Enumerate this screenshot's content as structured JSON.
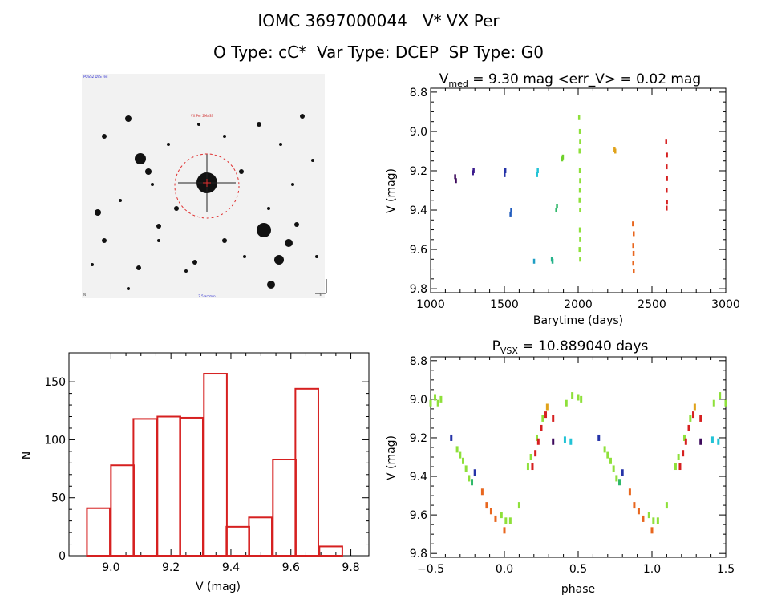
{
  "header": {
    "line1_id": "IOMC 3697000044",
    "line1_name": "V* VX Per",
    "line2_otype": "O Type: cC*",
    "line2_vartype": "Var Type: DCEP",
    "line2_sptype": "SP Type: G0"
  },
  "colors": {
    "histogram": "#d62020",
    "image_bg": "#f2f2f2",
    "aperture": "#e03030"
  },
  "chart_data": [
    {
      "type": "scatter",
      "panel": "light-curve",
      "title_main": "V",
      "title_sub": "med",
      "title_rest": " = 9.30 mag <err_V> = 0.02 mag",
      "xlabel": "Barytime (days)",
      "ylabel": "V (mag)",
      "xlim": [
        1000,
        3000
      ],
      "ylim": [
        9.82,
        8.78
      ],
      "xticks": [
        "1000",
        "1500",
        "2000",
        "2500",
        "3000"
      ],
      "yticks": [
        "8.8",
        "9.0",
        "9.2",
        "9.4",
        "9.6",
        "9.8"
      ],
      "series": [
        {
          "color": "#3d0a5c",
          "points": [
            [
              1165,
              9.23
            ],
            [
              1170,
              9.25
            ]
          ]
        },
        {
          "color": "#3a1a8c",
          "points": [
            [
              1285,
              9.21
            ],
            [
              1290,
              9.2
            ]
          ]
        },
        {
          "color": "#2533a8",
          "points": [
            [
              1500,
              9.22
            ],
            [
              1505,
              9.2
            ]
          ]
        },
        {
          "color": "#1f5bbd",
          "points": [
            [
              1540,
              9.42
            ],
            [
              1545,
              9.4
            ]
          ]
        },
        {
          "color": "#1e9ec4",
          "points": [
            [
              1700,
              9.66
            ]
          ]
        },
        {
          "color": "#22c3d6",
          "points": [
            [
              1720,
              9.22
            ],
            [
              1725,
              9.2
            ]
          ]
        },
        {
          "color": "#25b28a",
          "points": [
            [
              1820,
              9.65
            ],
            [
              1825,
              9.66
            ]
          ]
        },
        {
          "color": "#2fb86a",
          "points": [
            [
              1850,
              9.4
            ],
            [
              1855,
              9.38
            ]
          ]
        },
        {
          "color": "#6ed12a",
          "points": [
            [
              1890,
              9.14
            ],
            [
              1895,
              9.13
            ]
          ]
        },
        {
          "color": "#8ee03a",
          "points": [
            [
              2005,
              8.93
            ],
            [
              2010,
              9.0
            ],
            [
              2012,
              9.05
            ],
            [
              2008,
              9.1
            ],
            [
              2010,
              9.2
            ],
            [
              2012,
              9.25
            ],
            [
              2010,
              9.3
            ],
            [
              2008,
              9.35
            ],
            [
              2012,
              9.4
            ],
            [
              2010,
              9.5
            ],
            [
              2012,
              9.55
            ],
            [
              2008,
              9.6
            ],
            [
              2012,
              9.65
            ]
          ]
        },
        {
          "color": "#e0a21a",
          "points": [
            [
              2245,
              9.09
            ],
            [
              2250,
              9.1
            ]
          ]
        },
        {
          "color": "#e8661e",
          "points": [
            [
              2370,
              9.47
            ],
            [
              2375,
              9.52
            ],
            [
              2372,
              9.58
            ],
            [
              2374,
              9.62
            ],
            [
              2372,
              9.67
            ],
            [
              2375,
              9.71
            ]
          ]
        },
        {
          "color": "#d62020",
          "points": [
            [
              2595,
              9.05
            ],
            [
              2600,
              9.12
            ],
            [
              2598,
              9.18
            ],
            [
              2600,
              9.24
            ],
            [
              2598,
              9.3
            ],
            [
              2600,
              9.36
            ],
            [
              2598,
              9.39
            ]
          ]
        }
      ]
    },
    {
      "type": "bar",
      "panel": "histogram",
      "xlabel": "V (mag)",
      "ylabel": "N",
      "xlim": [
        8.86,
        9.86
      ],
      "ylim": [
        0,
        175
      ],
      "xticks": [
        "9.0",
        "9.2",
        "9.4",
        "9.6",
        "9.8"
      ],
      "yticks": [
        "0",
        "50",
        "100",
        "150"
      ],
      "bin_width": 0.0765,
      "bin_starts": [
        8.92,
        9.0,
        9.075,
        9.155,
        9.23,
        9.31,
        9.385,
        9.46,
        9.54,
        9.615,
        9.695
      ],
      "values": [
        41,
        78,
        118,
        120,
        119,
        157,
        25,
        33,
        83,
        144,
        8
      ]
    },
    {
      "type": "scatter",
      "panel": "phased-curve",
      "title_main": "P",
      "title_sub": "VSX",
      "title_rest": " = 10.889040 days",
      "xlabel": "phase",
      "ylabel": "V (mag)",
      "xlim": [
        -0.5,
        1.5
      ],
      "ylim": [
        9.82,
        8.78
      ],
      "xticks": [
        "−0.5",
        "0.0",
        "0.5",
        "1.0",
        "1.5"
      ],
      "yticks": [
        "8.8",
        "9.0",
        "9.2",
        "9.4",
        "9.6",
        "9.8"
      ],
      "series": [
        {
          "color": "#8ee03a",
          "points": [
            [
              -0.5,
              9.02
            ],
            [
              -0.47,
              8.99
            ],
            [
              -0.45,
              9.02
            ],
            [
              -0.43,
              9.0
            ],
            [
              -0.32,
              9.26
            ],
            [
              -0.3,
              9.29
            ],
            [
              -0.28,
              9.32
            ],
            [
              -0.26,
              9.36
            ],
            [
              -0.24,
              9.41
            ],
            [
              -0.02,
              9.6
            ],
            [
              0.01,
              9.63
            ],
            [
              0.04,
              9.63
            ],
            [
              0.1,
              9.55
            ],
            [
              0.16,
              9.35
            ],
            [
              0.18,
              9.3
            ],
            [
              0.22,
              9.2
            ],
            [
              0.26,
              9.1
            ],
            [
              0.42,
              9.02
            ],
            [
              0.46,
              8.98
            ],
            [
              0.5,
              8.99
            ],
            [
              0.52,
              9.0
            ],
            [
              0.68,
              9.26
            ],
            [
              0.7,
              9.29
            ],
            [
              0.72,
              9.32
            ],
            [
              0.74,
              9.36
            ],
            [
              0.76,
              9.41
            ],
            [
              0.98,
              9.6
            ],
            [
              1.01,
              9.63
            ],
            [
              1.04,
              9.63
            ],
            [
              1.1,
              9.55
            ],
            [
              1.16,
              9.35
            ],
            [
              1.18,
              9.3
            ],
            [
              1.22,
              9.2
            ],
            [
              1.26,
              9.1
            ],
            [
              1.42,
              9.02
            ],
            [
              1.46,
              8.98
            ],
            [
              1.5,
              9.02
            ]
          ]
        },
        {
          "color": "#e8661e",
          "points": [
            [
              -0.15,
              9.48
            ],
            [
              -0.12,
              9.55
            ],
            [
              -0.09,
              9.58
            ],
            [
              -0.06,
              9.62
            ],
            [
              0.0,
              9.68
            ],
            [
              0.85,
              9.48
            ],
            [
              0.88,
              9.55
            ],
            [
              0.91,
              9.58
            ],
            [
              0.94,
              9.62
            ],
            [
              1.0,
              9.68
            ]
          ]
        },
        {
          "color": "#d62020",
          "points": [
            [
              0.19,
              9.35
            ],
            [
              0.21,
              9.28
            ],
            [
              0.23,
              9.22
            ],
            [
              0.25,
              9.15
            ],
            [
              0.28,
              9.08
            ],
            [
              0.33,
              9.1
            ],
            [
              1.19,
              9.35
            ],
            [
              1.21,
              9.28
            ],
            [
              1.23,
              9.22
            ],
            [
              1.25,
              9.15
            ],
            [
              1.28,
              9.08
            ],
            [
              1.33,
              9.1
            ]
          ]
        },
        {
          "color": "#2533a8",
          "points": [
            [
              -0.36,
              9.2
            ],
            [
              -0.2,
              9.38
            ],
            [
              0.64,
              9.2
            ],
            [
              0.8,
              9.38
            ]
          ]
        },
        {
          "color": "#22c3d6",
          "points": [
            [
              0.41,
              9.21
            ],
            [
              0.45,
              9.22
            ],
            [
              1.41,
              9.21
            ],
            [
              1.45,
              9.22
            ]
          ]
        },
        {
          "color": "#3d0a5c",
          "points": [
            [
              0.33,
              9.22
            ],
            [
              1.33,
              9.22
            ]
          ]
        },
        {
          "color": "#2fb86a",
          "points": [
            [
              -0.22,
              9.43
            ],
            [
              0.78,
              9.43
            ]
          ]
        },
        {
          "color": "#e0a21a",
          "points": [
            [
              0.29,
              9.04
            ],
            [
              1.29,
              9.04
            ]
          ]
        }
      ]
    }
  ],
  "thumbnail": {
    "label_top_left": "POSS2 DSS red",
    "label_center": "VX Per 2MASS",
    "label_bottom_left": "N",
    "label_bottom_center": "2.5 arcmin",
    "label_bottom_right": "E"
  }
}
